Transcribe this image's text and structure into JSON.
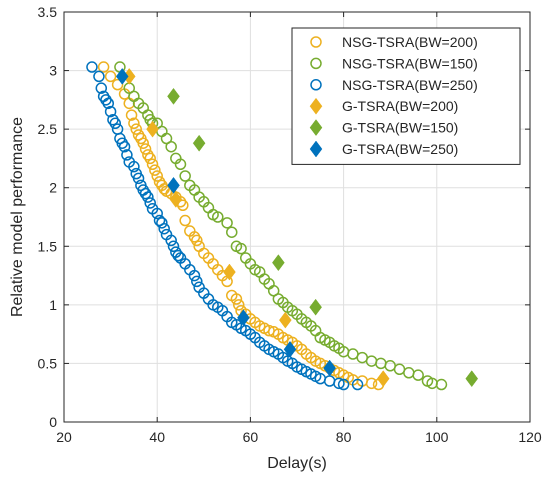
{
  "chart_data": {
    "type": "scatter",
    "xlabel": "Delay(s)",
    "ylabel": "Relative model performance",
    "xlim": [
      20,
      120
    ],
    "ylim": [
      0,
      3.5
    ],
    "x_ticks": [
      "20",
      "40",
      "60",
      "80",
      "100",
      "120"
    ],
    "y_ticks": [
      "0",
      "0.5",
      "1",
      "1.5",
      "2",
      "2.5",
      "3",
      "3.5"
    ],
    "x_tick_values": [
      20,
      40,
      60,
      80,
      100,
      120
    ],
    "y_tick_values": [
      0,
      0.5,
      1,
      1.5,
      2,
      2.5,
      3,
      3.5
    ],
    "grid": true,
    "legend_position": "top-right",
    "series": [
      {
        "name": "NSG-TSRA(BW=200)",
        "marker": "circle",
        "color": "#EDB120",
        "points": [
          [
            28.5,
            3.03
          ],
          [
            30,
            2.95
          ],
          [
            31.5,
            2.88
          ],
          [
            33,
            2.8
          ],
          [
            34,
            2.72
          ],
          [
            34.5,
            2.62
          ],
          [
            35,
            2.55
          ],
          [
            35.5,
            2.5
          ],
          [
            36,
            2.45
          ],
          [
            36.5,
            2.42
          ],
          [
            37,
            2.38
          ],
          [
            37.5,
            2.33
          ],
          [
            38,
            2.28
          ],
          [
            38.5,
            2.25
          ],
          [
            39,
            2.2
          ],
          [
            39.5,
            2.15
          ],
          [
            40,
            2.1
          ],
          [
            40.5,
            2.05
          ],
          [
            41,
            2.02
          ],
          [
            41.5,
            1.99
          ],
          [
            42,
            1.97
          ],
          [
            43,
            1.95
          ],
          [
            44,
            1.92
          ],
          [
            45,
            1.88
          ],
          [
            45.5,
            1.85
          ],
          [
            46,
            1.72
          ],
          [
            47,
            1.63
          ],
          [
            48,
            1.58
          ],
          [
            48.5,
            1.55
          ],
          [
            49,
            1.5
          ],
          [
            50,
            1.44
          ],
          [
            51,
            1.4
          ],
          [
            52,
            1.35
          ],
          [
            53,
            1.3
          ],
          [
            54,
            1.25
          ],
          [
            55,
            1.2
          ],
          [
            56,
            1.08
          ],
          [
            57,
            1.05
          ],
          [
            57.5,
            1
          ],
          [
            58,
            0.95
          ],
          [
            59,
            0.92
          ],
          [
            60,
            0.88
          ],
          [
            61,
            0.85
          ],
          [
            62,
            0.82
          ],
          [
            63,
            0.8
          ],
          [
            64,
            0.78
          ],
          [
            65,
            0.77
          ],
          [
            66,
            0.75
          ],
          [
            67,
            0.72
          ],
          [
            68,
            0.7
          ],
          [
            69,
            0.68
          ],
          [
            70,
            0.65
          ],
          [
            71,
            0.62
          ],
          [
            72,
            0.58
          ],
          [
            73,
            0.55
          ],
          [
            74,
            0.52
          ],
          [
            75,
            0.5
          ],
          [
            76,
            0.48
          ],
          [
            77,
            0.46
          ],
          [
            78,
            0.44
          ],
          [
            79,
            0.42
          ],
          [
            80,
            0.4
          ],
          [
            81,
            0.38
          ],
          [
            82,
            0.36
          ],
          [
            84,
            0.35
          ],
          [
            86,
            0.33
          ],
          [
            87.5,
            0.32
          ]
        ]
      },
      {
        "name": "NSG-TSRA(BW=150)",
        "marker": "circle",
        "color": "#77AC30",
        "points": [
          [
            32,
            3.03
          ],
          [
            34,
            2.85
          ],
          [
            35,
            2.78
          ],
          [
            36,
            2.72
          ],
          [
            37,
            2.68
          ],
          [
            38,
            2.62
          ],
          [
            38.5,
            2.58
          ],
          [
            39,
            2.55
          ],
          [
            40,
            2.55
          ],
          [
            41,
            2.48
          ],
          [
            42,
            2.42
          ],
          [
            43,
            2.35
          ],
          [
            44,
            2.25
          ],
          [
            45,
            2.2
          ],
          [
            46,
            2.1
          ],
          [
            47,
            2.02
          ],
          [
            48,
            1.98
          ],
          [
            49,
            1.92
          ],
          [
            50,
            1.88
          ],
          [
            51,
            1.83
          ],
          [
            52,
            1.77
          ],
          [
            53,
            1.75
          ],
          [
            55,
            1.7
          ],
          [
            56,
            1.62
          ],
          [
            57,
            1.5
          ],
          [
            58,
            1.48
          ],
          [
            59,
            1.4
          ],
          [
            60,
            1.35
          ],
          [
            61,
            1.3
          ],
          [
            62,
            1.28
          ],
          [
            63,
            1.22
          ],
          [
            64,
            1.18
          ],
          [
            65,
            1.12
          ],
          [
            66,
            1.05
          ],
          [
            67,
            1.02
          ],
          [
            68,
            0.98
          ],
          [
            69,
            0.95
          ],
          [
            70,
            0.92
          ],
          [
            71,
            0.88
          ],
          [
            72,
            0.85
          ],
          [
            73,
            0.82
          ],
          [
            74,
            0.78
          ],
          [
            75,
            0.72
          ],
          [
            76,
            0.7
          ],
          [
            77,
            0.68
          ],
          [
            78,
            0.65
          ],
          [
            79,
            0.63
          ],
          [
            80,
            0.6
          ],
          [
            82,
            0.58
          ],
          [
            84,
            0.55
          ],
          [
            86,
            0.52
          ],
          [
            88,
            0.5
          ],
          [
            90,
            0.48
          ],
          [
            92,
            0.45
          ],
          [
            94,
            0.42
          ],
          [
            96,
            0.4
          ],
          [
            98,
            0.35
          ],
          [
            99,
            0.33
          ],
          [
            101,
            0.32
          ]
        ]
      },
      {
        "name": "NSG-TSRA(BW=250)",
        "marker": "circle",
        "color": "#0072BD",
        "points": [
          [
            26,
            3.03
          ],
          [
            27.5,
            2.95
          ],
          [
            28,
            2.85
          ],
          [
            28.5,
            2.78
          ],
          [
            29,
            2.75
          ],
          [
            29.5,
            2.72
          ],
          [
            30,
            2.65
          ],
          [
            30.5,
            2.58
          ],
          [
            31,
            2.55
          ],
          [
            31.5,
            2.5
          ],
          [
            32,
            2.42
          ],
          [
            32.5,
            2.38
          ],
          [
            33,
            2.35
          ],
          [
            33.5,
            2.28
          ],
          [
            34,
            2.22
          ],
          [
            35,
            2.18
          ],
          [
            35.5,
            2.12
          ],
          [
            36,
            2.08
          ],
          [
            36.5,
            2.02
          ],
          [
            37,
            1.98
          ],
          [
            37.5,
            1.95
          ],
          [
            38,
            1.92
          ],
          [
            38.5,
            1.87
          ],
          [
            39,
            1.82
          ],
          [
            40,
            1.78
          ],
          [
            40.5,
            1.72
          ],
          [
            41,
            1.7
          ],
          [
            41.5,
            1.65
          ],
          [
            42,
            1.6
          ],
          [
            43,
            1.55
          ],
          [
            43.5,
            1.5
          ],
          [
            44,
            1.45
          ],
          [
            44.5,
            1.42
          ],
          [
            45,
            1.4
          ],
          [
            46,
            1.35
          ],
          [
            47,
            1.3
          ],
          [
            48,
            1.25
          ],
          [
            48.5,
            1.2
          ],
          [
            49,
            1.15
          ],
          [
            50,
            1.1
          ],
          [
            51,
            1.05
          ],
          [
            52,
            1
          ],
          [
            53,
            0.98
          ],
          [
            54,
            0.95
          ],
          [
            55,
            0.9
          ],
          [
            56,
            0.85
          ],
          [
            57,
            0.83
          ],
          [
            58,
            0.8
          ],
          [
            59,
            0.78
          ],
          [
            60,
            0.75
          ],
          [
            61,
            0.72
          ],
          [
            62,
            0.68
          ],
          [
            63,
            0.65
          ],
          [
            64,
            0.62
          ],
          [
            65,
            0.6
          ],
          [
            66,
            0.58
          ],
          [
            67,
            0.55
          ],
          [
            68,
            0.52
          ],
          [
            69,
            0.5
          ],
          [
            70,
            0.47
          ],
          [
            71,
            0.45
          ],
          [
            72,
            0.43
          ],
          [
            73,
            0.41
          ],
          [
            74,
            0.39
          ],
          [
            75,
            0.37
          ],
          [
            77,
            0.35
          ],
          [
            79,
            0.33
          ],
          [
            80,
            0.32
          ],
          [
            83,
            0.32
          ]
        ]
      },
      {
        "name": "G-TSRA(BW=200)",
        "marker": "diamond",
        "color": "#EDB120",
        "points": [
          [
            34,
            2.95
          ],
          [
            39,
            2.5
          ],
          [
            44,
            1.9
          ],
          [
            55.5,
            1.28
          ],
          [
            67.5,
            0.87
          ],
          [
            88.5,
            0.37
          ]
        ]
      },
      {
        "name": "G-TSRA(BW=150)",
        "marker": "diamond",
        "color": "#77AC30",
        "points": [
          [
            43.5,
            2.78
          ],
          [
            49,
            2.38
          ],
          [
            66,
            1.36
          ],
          [
            74,
            0.98
          ],
          [
            107.5,
            0.37
          ]
        ]
      },
      {
        "name": "G-TSRA(BW=250)",
        "marker": "diamond",
        "color": "#0072BD",
        "points": [
          [
            32.5,
            2.95
          ],
          [
            43.5,
            2.02
          ],
          [
            58.5,
            0.89
          ],
          [
            68.5,
            0.62
          ],
          [
            77,
            0.46
          ]
        ]
      }
    ]
  }
}
